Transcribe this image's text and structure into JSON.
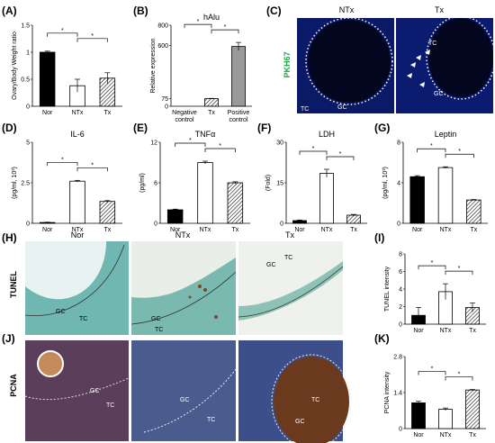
{
  "panels_letters": [
    "(A)",
    "(B)",
    "(C)",
    "(D)",
    "(E)",
    "(F)",
    "(G)",
    "(H)",
    "(I)",
    "(J)",
    "(K)"
  ],
  "chart_data": [
    {
      "id": "A",
      "type": "bar",
      "title": "",
      "categories": [
        "Nor",
        "NTx",
        "Tx"
      ],
      "values": [
        1.0,
        0.38,
        0.52
      ],
      "errors": [
        0.02,
        0.12,
        0.1
      ],
      "ylabel": "Ovary/Body Weight ratio",
      "yticks": [
        "0",
        "0.5",
        "1",
        "1.5"
      ],
      "ylim": [
        0,
        1.5
      ],
      "styles": [
        "black",
        "white",
        "hatch"
      ],
      "sig": [
        "*",
        "*"
      ]
    },
    {
      "id": "B",
      "type": "bar",
      "title": "hAlu",
      "categories": [
        "Negative control",
        "Tx",
        "Positive control"
      ],
      "values": [
        0,
        75,
        590
      ],
      "errors": [
        0,
        3,
        40
      ],
      "ylabel": "Relative expression",
      "yticks": [
        "0",
        "75",
        "600",
        "800"
      ],
      "ylim": [
        0,
        800
      ],
      "styles": [
        "white",
        "hatch",
        "gray"
      ],
      "sig": [
        "*",
        "*"
      ]
    },
    {
      "id": "D",
      "type": "bar",
      "title": "IL-6",
      "categories": [
        "Nor",
        "NTx",
        "Tx"
      ],
      "values": [
        0.05,
        2.6,
        1.35
      ],
      "errors": [
        0.02,
        0.05,
        0.05
      ],
      "ylabel": "(pg/ml, 10³)",
      "yticks": [
        "0",
        "2.5",
        "5"
      ],
      "ylim": [
        0,
        5
      ],
      "styles": [
        "black",
        "white",
        "hatch"
      ],
      "sig": [
        "*",
        "*"
      ]
    },
    {
      "id": "E",
      "type": "bar",
      "title": "TNFα",
      "categories": [
        "Nor",
        "NTx",
        "Tx"
      ],
      "values": [
        2.0,
        9.0,
        6.0
      ],
      "errors": [
        0.1,
        0.2,
        0.15
      ],
      "ylabel": "(pg/ml)",
      "yticks": [
        "0",
        "6",
        "12"
      ],
      "ylim": [
        0,
        12
      ],
      "styles": [
        "black",
        "white",
        "hatch"
      ],
      "sig": [
        "*",
        "*"
      ]
    },
    {
      "id": "F",
      "type": "bar",
      "title": "LDH",
      "categories": [
        "Nor",
        "NTx",
        "Tx"
      ],
      "values": [
        1.0,
        18.5,
        3.0
      ],
      "errors": [
        0.2,
        1.5,
        0.3
      ],
      "ylabel": "(Fold)",
      "yticks": [
        "0",
        "15",
        "30"
      ],
      "ylim": [
        0,
        30
      ],
      "styles": [
        "black",
        "white",
        "hatch"
      ],
      "sig": [
        "*",
        "*"
      ]
    },
    {
      "id": "G",
      "type": "bar",
      "title": "Leptin",
      "categories": [
        "Nor",
        "NTx",
        "Tx"
      ],
      "values": [
        4.6,
        5.5,
        2.3
      ],
      "errors": [
        0.1,
        0.08,
        0.05
      ],
      "ylabel": "(pg/ml, 10³)",
      "yticks": [
        "0",
        "4",
        "8"
      ],
      "ylim": [
        0,
        8
      ],
      "styles": [
        "black",
        "white",
        "hatch"
      ],
      "sig": [
        "*",
        "*"
      ]
    },
    {
      "id": "I",
      "type": "bar",
      "title": "",
      "categories": [
        "Nor",
        "NTx",
        "Tx"
      ],
      "values": [
        1.0,
        3.7,
        1.9
      ],
      "errors": [
        0.9,
        0.9,
        0.5
      ],
      "ylabel": "TUNEL intensity",
      "yticks": [
        "0",
        "2",
        "4",
        "6",
        "8"
      ],
      "ylim": [
        0,
        8
      ],
      "styles": [
        "black",
        "white",
        "hatch"
      ],
      "sig": [
        "*",
        "*"
      ]
    },
    {
      "id": "K",
      "type": "bar",
      "title": "",
      "categories": [
        "Nor",
        "NTx",
        "Tx"
      ],
      "values": [
        1.0,
        0.75,
        1.5
      ],
      "errors": [
        0.06,
        0.05,
        0.02
      ],
      "ylabel": "PCNA intensity",
      "yticks": [
        "0",
        "1.4",
        "2.8"
      ],
      "ylim": [
        0,
        2.8
      ],
      "styles": [
        "black",
        "white",
        "hatch"
      ],
      "sig": [
        "*",
        "*"
      ]
    }
  ],
  "panel_C": {
    "labels": [
      "NTx",
      "Tx"
    ],
    "stain": "PKH67",
    "region_labels": [
      "TC",
      "GC",
      "TC",
      "GC"
    ]
  },
  "panel_H": {
    "row_label": "TUNEL",
    "columns": [
      "Nor",
      "NTx",
      "Tx"
    ],
    "region_labels": [
      "GC",
      "TC",
      "GC",
      "TC",
      "GC",
      "TC"
    ]
  },
  "panel_J": {
    "row_label": "PCNA",
    "region_labels": [
      "GC",
      "TC",
      "GC",
      "TC",
      "GC",
      "TC"
    ]
  },
  "colors": {
    "stain_green": "#1aa54a",
    "fluor_bg": "#0a1a66",
    "fluor_dark": "#02061f",
    "tunel_bg": "#6fb7b0",
    "pcna_bg": "#3c4f8a",
    "pcna_brown": "#6b3a1e"
  }
}
